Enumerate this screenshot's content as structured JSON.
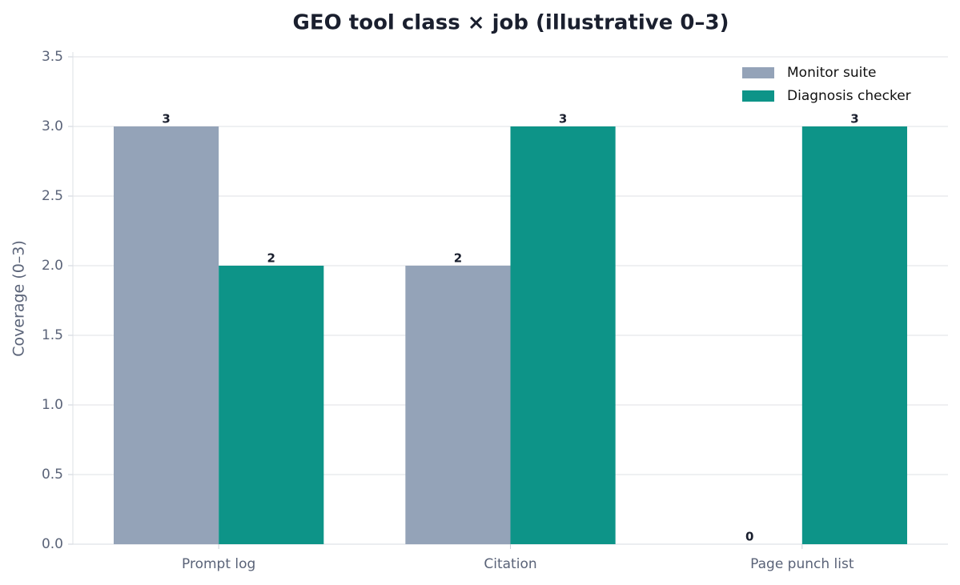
{
  "chart_data": {
    "type": "bar",
    "title": "GEO tool class × job (illustrative 0–3)",
    "y_label": "Coverage (0–3)",
    "categories": [
      "Prompt log",
      "Citation",
      "Page punch list"
    ],
    "series": [
      {
        "name": "Monitor suite",
        "color": "#94a3b8",
        "values": [
          3,
          2,
          0
        ]
      },
      {
        "name": "Diagnosis checker",
        "color": "#0d9488",
        "values": [
          2,
          3,
          3
        ]
      }
    ],
    "ylim": [
      0,
      3.5
    ],
    "yticks": [
      {
        "value": 0,
        "label": "0.0"
      },
      {
        "value": 0.5,
        "label": "0.5"
      },
      {
        "value": 1,
        "label": "1.0"
      },
      {
        "value": 1.5,
        "label": "1.5"
      },
      {
        "value": 2,
        "label": "2.0"
      },
      {
        "value": 2.5,
        "label": "2.5"
      },
      {
        "value": 3,
        "label": "3.0"
      },
      {
        "value": 3.5,
        "label": "3.5"
      }
    ],
    "grid": true,
    "legend": "upper right"
  }
}
